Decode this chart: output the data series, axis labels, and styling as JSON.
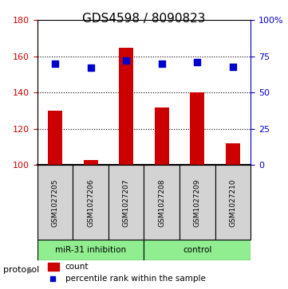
{
  "title": "GDS4598 / 8090823",
  "samples": [
    "GSM1027205",
    "GSM1027206",
    "GSM1027207",
    "GSM1027208",
    "GSM1027209",
    "GSM1027210"
  ],
  "counts": [
    130,
    103,
    165,
    132,
    140,
    112
  ],
  "percentile_ranks": [
    70,
    67,
    72,
    70,
    71,
    68
  ],
  "ylim_left": [
    100,
    180
  ],
  "ylim_right": [
    0,
    100
  ],
  "yticks_left": [
    100,
    120,
    140,
    160,
    180
  ],
  "yticks_right": [
    0,
    25,
    50,
    75,
    100
  ],
  "ytick_labels_right": [
    "0",
    "25",
    "50",
    "75",
    "100%"
  ],
  "bar_color": "#cc0000",
  "dot_color": "#0000cc",
  "protocol_groups": [
    {
      "label": "miR-31 inhibition",
      "samples": [
        0,
        1,
        2
      ],
      "color": "#90EE90"
    },
    {
      "label": "control",
      "samples": [
        3,
        4,
        5
      ],
      "color": "#90EE90"
    }
  ],
  "protocol_label": "protocol",
  "legend_count_label": "count",
  "legend_percentile_label": "percentile rank within the sample",
  "bar_width": 0.4,
  "grid_style": "dotted",
  "bg_color_plot": "#ffffff",
  "sample_col_bg": "#d3d3d3",
  "left_axis_color": "#cc0000",
  "right_axis_color": "#0000cc"
}
